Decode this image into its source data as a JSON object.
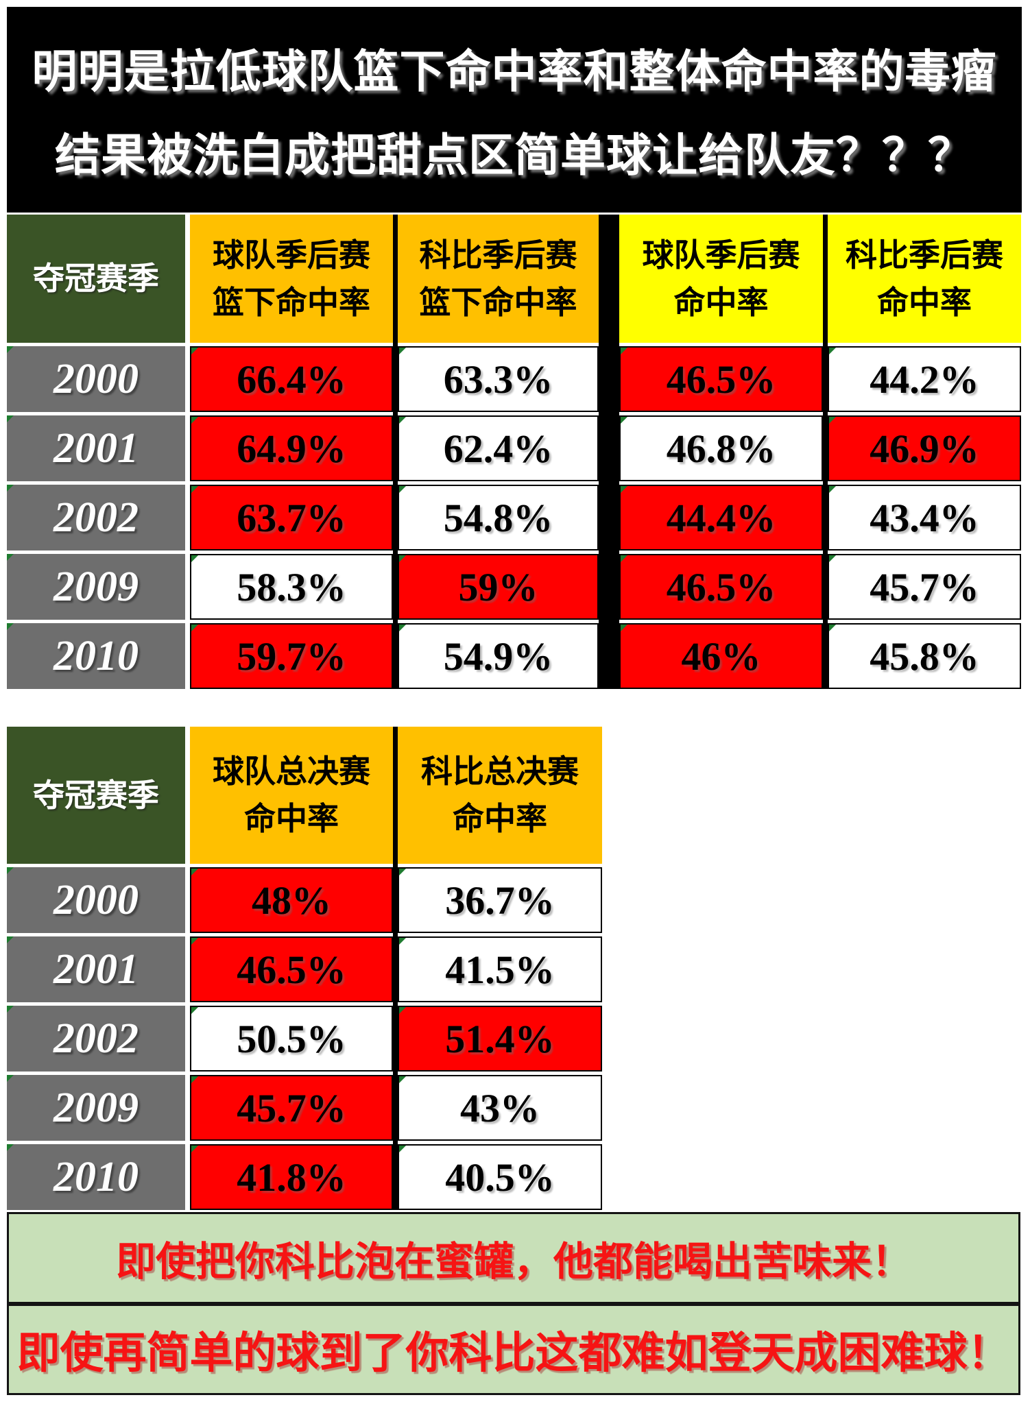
{
  "title": {
    "line1": "明明是拉低球队篮下命中率和整体命中率的毒瘤",
    "line2": "结果被洗白成把甜点区简单球让给队友？？？"
  },
  "table1": {
    "corner_header": "夺冠赛季",
    "headers": [
      {
        "line1": "球队季后赛",
        "line2": "篮下命中率"
      },
      {
        "line1": "科比季后赛",
        "line2": "篮下命中率"
      },
      {
        "line1": "球队季后赛",
        "line2": "命中率"
      },
      {
        "line1": "科比季后赛",
        "line2": "命中率"
      }
    ],
    "rows": [
      {
        "year": "2000",
        "cells": [
          {
            "value": "66.4%",
            "state": "red"
          },
          {
            "value": "63.3%",
            "state": "white"
          },
          {
            "value": "46.5%",
            "state": "red"
          },
          {
            "value": "44.2%",
            "state": "white"
          }
        ]
      },
      {
        "year": "2001",
        "cells": [
          {
            "value": "64.9%",
            "state": "red"
          },
          {
            "value": "62.4%",
            "state": "white"
          },
          {
            "value": "46.8%",
            "state": "white"
          },
          {
            "value": "46.9%",
            "state": "red"
          }
        ]
      },
      {
        "year": "2002",
        "cells": [
          {
            "value": "63.7%",
            "state": "red"
          },
          {
            "value": "54.8%",
            "state": "white"
          },
          {
            "value": "44.4%",
            "state": "red"
          },
          {
            "value": "43.4%",
            "state": "white"
          }
        ]
      },
      {
        "year": "2009",
        "cells": [
          {
            "value": "58.3%",
            "state": "white"
          },
          {
            "value": "59%",
            "state": "red"
          },
          {
            "value": "46.5%",
            "state": "red"
          },
          {
            "value": "45.7%",
            "state": "white"
          }
        ]
      },
      {
        "year": "2010",
        "cells": [
          {
            "value": "59.7%",
            "state": "red"
          },
          {
            "value": "54.9%",
            "state": "white"
          },
          {
            "value": "46%",
            "state": "red"
          },
          {
            "value": "45.8%",
            "state": "white"
          }
        ]
      }
    ]
  },
  "table2": {
    "corner_header": "夺冠赛季",
    "headers": [
      {
        "line1": "球队总决赛",
        "line2": "命中率"
      },
      {
        "line1": "科比总决赛",
        "line2": "命中率"
      }
    ],
    "rows": [
      {
        "year": "2000",
        "cells": [
          {
            "value": "48%",
            "state": "red"
          },
          {
            "value": "36.7%",
            "state": "white"
          }
        ]
      },
      {
        "year": "2001",
        "cells": [
          {
            "value": "46.5%",
            "state": "red"
          },
          {
            "value": "41.5%",
            "state": "white"
          }
        ]
      },
      {
        "year": "2002",
        "cells": [
          {
            "value": "50.5%",
            "state": "white"
          },
          {
            "value": "51.4%",
            "state": "red"
          }
        ]
      },
      {
        "year": "2009",
        "cells": [
          {
            "value": "45.7%",
            "state": "red"
          },
          {
            "value": "43%",
            "state": "white"
          }
        ]
      },
      {
        "year": "2010",
        "cells": [
          {
            "value": "41.8%",
            "state": "red"
          },
          {
            "value": "40.5%",
            "state": "white"
          }
        ]
      }
    ]
  },
  "banners": [
    {
      "text": "即使把你科比泡在蜜罐，他都能喝出苦味来！"
    },
    {
      "text": "即使再简单的球到了你科比这都难如登天成困难球！"
    }
  ],
  "colors": {
    "title_bg": "#000000",
    "title_text": "#ffffff",
    "corner_header_green": "#3a5426",
    "header_orange": "#ffc000",
    "header_yellow": "#ffff00",
    "year_cell_gray": "#6e6e6e",
    "highlight_red": "#ff0000",
    "banner_green": "#c8e0b8",
    "banner_text_red": "#f61414",
    "flag_green": "#1e7b2f"
  },
  "chart_data": [
    {
      "type": "table",
      "title": "明明是拉低球队篮下命中率和整体命中率的毒瘤 结果被洗白成把甜点区简单球让给队友？？？",
      "columns": [
        "夺冠赛季",
        "球队季后赛篮下命中率",
        "科比季后赛篮下命中率",
        "球队季后赛命中率",
        "科比季后赛命中率"
      ],
      "rows": [
        [
          "2000",
          "66.4%",
          "63.3%",
          "46.5%",
          "44.2%"
        ],
        [
          "2001",
          "64.9%",
          "62.4%",
          "46.8%",
          "46.9%"
        ],
        [
          "2002",
          "63.7%",
          "54.8%",
          "44.4%",
          "43.4%"
        ],
        [
          "2009",
          "58.3%",
          "59%",
          "46.5%",
          "45.7%"
        ],
        [
          "2010",
          "59.7%",
          "54.9%",
          "46%",
          "45.8%"
        ]
      ],
      "red_highlight_col_indices_per_row": [
        [
          1,
          3
        ],
        [
          1,
          4
        ],
        [
          1,
          3
        ],
        [
          2,
          3
        ],
        [
          1,
          3
        ]
      ]
    },
    {
      "type": "table",
      "title": "总决赛命中率对比",
      "columns": [
        "夺冠赛季",
        "球队总决赛命中率",
        "科比总决赛命中率"
      ],
      "rows": [
        [
          "2000",
          "48%",
          "36.7%"
        ],
        [
          "2001",
          "46.5%",
          "41.5%"
        ],
        [
          "2002",
          "50.5%",
          "51.4%"
        ],
        [
          "2009",
          "45.7%",
          "43%"
        ],
        [
          "2010",
          "41.8%",
          "40.5%"
        ]
      ],
      "red_highlight_col_indices_per_row": [
        [
          1
        ],
        [
          1
        ],
        [
          2
        ],
        [
          1
        ],
        [
          1
        ]
      ]
    }
  ]
}
